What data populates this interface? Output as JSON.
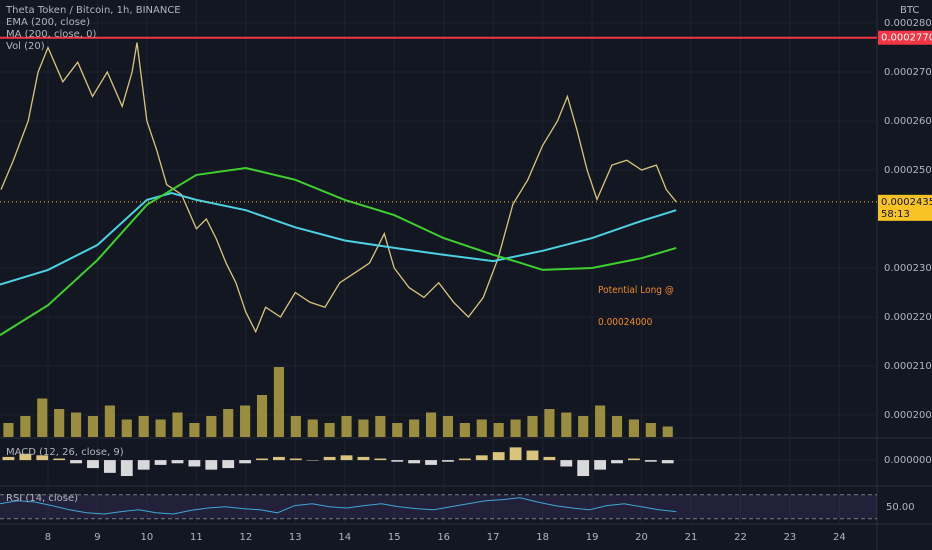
{
  "chart_data": [
    {
      "type": "line",
      "title": "Theta Token / Bitcoin, 1h, BINANCE",
      "y_axis_label": "BTC",
      "xlim": [
        7.03,
        24.76
      ],
      "xticks": [
        8,
        9,
        10,
        11,
        12,
        13,
        14,
        15,
        16,
        17,
        18,
        19,
        20,
        21,
        22,
        23,
        24
      ],
      "ylim": [
        0.0001955,
        0.0002847
      ],
      "yticks": [
        {
          "value": 0.00028,
          "label": "0.00028000"
        },
        {
          "value": 0.00027,
          "label": "0.00027000"
        },
        {
          "value": 0.00026,
          "label": "0.00026000"
        },
        {
          "value": 0.00025,
          "label": "0.00025000"
        },
        {
          "value": 0.00023,
          "label": "0.00023000"
        },
        {
          "value": 0.00022,
          "label": "0.00022000"
        },
        {
          "value": 0.00021,
          "label": "0.00021000"
        },
        {
          "value": 0.0002,
          "label": "0.00020000"
        }
      ],
      "grid": true,
      "series": [
        {
          "color": "#d9c47e",
          "x": [
            7.05,
            7.3,
            7.6,
            7.8,
            8.0,
            8.3,
            8.6,
            8.9,
            9.2,
            9.5,
            9.7,
            9.8,
            10.0,
            10.2,
            10.4,
            10.7,
            11.0,
            11.2,
            11.4,
            11.6,
            11.8,
            12.0,
            12.2,
            12.4,
            12.7,
            13.0,
            13.3,
            13.6,
            13.9,
            14.2,
            14.5,
            14.8,
            15.0,
            15.3,
            15.6,
            15.9,
            16.2,
            16.5,
            16.8,
            17.1,
            17.4,
            17.7,
            18.0,
            18.3,
            18.5,
            18.7,
            18.9,
            19.1,
            19.4,
            19.7,
            20.0,
            20.3,
            20.5,
            20.7
          ],
          "values": [
            0.000246,
            0.000252,
            0.00026,
            0.00027,
            0.000275,
            0.000268,
            0.000272,
            0.000265,
            0.00027,
            0.000263,
            0.00027,
            0.000276,
            0.00026,
            0.000254,
            0.000247,
            0.000245,
            0.000238,
            0.00024,
            0.000236,
            0.000231,
            0.000227,
            0.000221,
            0.000217,
            0.000222,
            0.00022,
            0.000225,
            0.000223,
            0.000222,
            0.000227,
            0.000229,
            0.000231,
            0.000237,
            0.00023,
            0.000226,
            0.000224,
            0.000227,
            0.000223,
            0.00022,
            0.000224,
            0.000232,
            0.000243,
            0.000248,
            0.000255,
            0.00026,
            0.000265,
            0.000258,
            0.00025,
            0.000244,
            0.000251,
            0.000252,
            0.00025,
            0.000251,
            0.000246,
            0.0002435
          ]
        },
        {
          "name": "EMA (200, close)",
          "color": "#4dd0e1",
          "x": [
            7.03,
            8,
            9,
            10,
            10.5,
            11,
            12,
            13,
            14,
            15,
            16,
            17,
            18,
            19,
            20,
            20.7
          ],
          "values": [
            0.0002266,
            0.0002296,
            0.0002347,
            0.0002439,
            0.0002453,
            0.0002439,
            0.0002418,
            0.0002383,
            0.0002356,
            0.0002341,
            0.0002327,
            0.0002314,
            0.0002335,
            0.0002361,
            0.0002396,
            0.0002418
          ]
        },
        {
          "name": "MA (200, close, 0)",
          "color": "#3fcf2f",
          "x": [
            7.03,
            8,
            9,
            10,
            11,
            12,
            13,
            14,
            15,
            16,
            17,
            17.5,
            18,
            19,
            20,
            20.7
          ],
          "values": [
            0.0002163,
            0.0002224,
            0.0002316,
            0.0002429,
            0.000249,
            0.0002504,
            0.000248,
            0.0002439,
            0.0002408,
            0.0002361,
            0.0002327,
            0.0002312,
            0.0002296,
            0.00023,
            0.000232,
            0.0002341
          ]
        }
      ],
      "hlines": [
        {
          "value": 0.000277,
          "label": "0.00027700",
          "color": "#f23645"
        }
      ],
      "last_price": {
        "value": 0.0002435,
        "label": "0.00024350",
        "countdown": "58:13",
        "color": "#f7c325"
      },
      "annotation": {
        "lines": [
          "Potential Long @",
          "0.00024000"
        ],
        "color": "#f08a2a"
      }
    },
    {
      "type": "bar",
      "title": "Vol (20)",
      "color": "#c9b54a",
      "ylim": [
        0,
        100
      ],
      "values": [
        20,
        30,
        55,
        40,
        35,
        30,
        45,
        25,
        30,
        25,
        35,
        20,
        30,
        40,
        45,
        60,
        100,
        30,
        25,
        20,
        30,
        25,
        30,
        20,
        25,
        35,
        30,
        20,
        25,
        20,
        25,
        30,
        40,
        35,
        30,
        45,
        30,
        25,
        20,
        15
      ]
    },
    {
      "type": "bar",
      "title": "MACD (12, 26, close, 9)",
      "color": "#d9d9d9",
      "ylim": [
        -1.5e-06,
        1.2e-06
      ],
      "yticks": [
        {
          "value": 0,
          "label": "0.00000000"
        }
      ],
      "values": [
        2e-07,
        4e-07,
        3e-07,
        1e-07,
        -2e-07,
        -5e-07,
        -8e-07,
        -1e-06,
        -6e-07,
        -3e-07,
        -2e-07,
        -4e-07,
        -6e-07,
        -5e-07,
        -2e-07,
        1e-07,
        2e-07,
        1e-07,
        0,
        2e-07,
        3e-07,
        2e-07,
        1e-07,
        -1e-07,
        -2e-07,
        -3e-07,
        -1e-07,
        1e-07,
        3e-07,
        5e-07,
        8e-07,
        6e-07,
        2e-07,
        -4e-07,
        -1e-06,
        -6e-07,
        -2e-07,
        1e-07,
        -1e-07,
        -2e-07
      ]
    },
    {
      "type": "line",
      "title": "RSI (14, close)",
      "color": "#3fa7d6",
      "ylim": [
        23,
        83
      ],
      "bands": [
        30,
        70
      ],
      "yticks": [
        {
          "value": 50,
          "label": "50.00"
        }
      ],
      "values": [
        55,
        60,
        58,
        52,
        45,
        40,
        38,
        42,
        45,
        40,
        38,
        44,
        48,
        50,
        47,
        45,
        40,
        52,
        55,
        50,
        48,
        52,
        55,
        50,
        47,
        45,
        50,
        55,
        60,
        62,
        65,
        58,
        52,
        48,
        45,
        52,
        55,
        50,
        45,
        42
      ]
    }
  ]
}
